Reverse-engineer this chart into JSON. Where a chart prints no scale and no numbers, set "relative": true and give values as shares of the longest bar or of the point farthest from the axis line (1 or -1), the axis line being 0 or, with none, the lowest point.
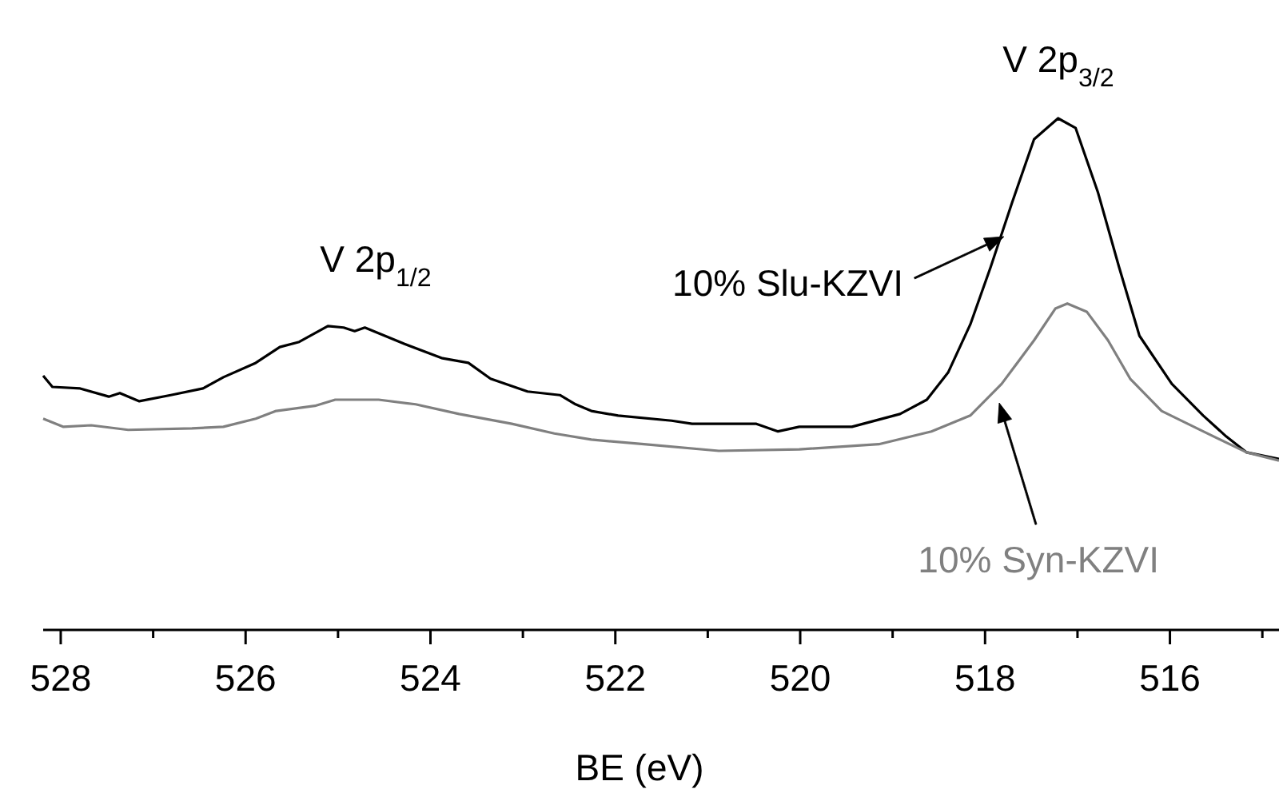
{
  "chart_data": {
    "type": "line",
    "xlabel": "BE (eV)",
    "relative": true,
    "xlim": [
      528.19,
      514.82
    ],
    "xticks": [
      528,
      {
        "value": 527,
        "label": null
      },
      526,
      {
        "value": 525,
        "label": null
      },
      524,
      {
        "value": 523,
        "label": null
      },
      522,
      {
        "value": 521,
        "label": null
      },
      520,
      {
        "value": 519,
        "label": null
      },
      518,
      {
        "value": 517,
        "label": null
      },
      516,
      {
        "value": 515,
        "label": null
      }
    ],
    "annotations": [
      "V 2p$_{1/2}$",
      "V 2p$_{3/2}$"
    ],
    "grid": false,
    "marker": "none",
    "line_style": "solid",
    "series": [
      {
        "name": "10% Slu-KZVI",
        "color": "#000000",
        "x": [
          528.19,
          528.09,
          527.79,
          527.48,
          527.36,
          527.15,
          526.81,
          526.46,
          526.24,
          525.89,
          525.63,
          525.42,
          525.11,
          524.94,
          524.82,
          524.71,
          524.28,
          523.87,
          523.59,
          523.35,
          522.95,
          522.6,
          522.43,
          522.26,
          521.97,
          521.39,
          521.17,
          520.48,
          520.24,
          520.01,
          519.44,
          518.92,
          518.63,
          518.4,
          518.16,
          517.94,
          517.71,
          517.47,
          517.21,
          517.02,
          516.78,
          516.55,
          516.33,
          515.98,
          515.64,
          515.39,
          515.17,
          514.82
        ],
        "values": [
          0.497,
          0.475,
          0.472,
          0.456,
          0.463,
          0.447,
          0.459,
          0.472,
          0.494,
          0.522,
          0.553,
          0.563,
          0.594,
          0.591,
          0.584,
          0.591,
          0.559,
          0.531,
          0.522,
          0.491,
          0.466,
          0.459,
          0.441,
          0.428,
          0.419,
          0.409,
          0.403,
          0.403,
          0.388,
          0.397,
          0.397,
          0.422,
          0.45,
          0.503,
          0.597,
          0.709,
          0.834,
          0.959,
          1,
          0.981,
          0.856,
          0.709,
          0.575,
          0.481,
          0.419,
          0.378,
          0.347,
          0.334
        ]
      },
      {
        "name": "10% Syn-KZVI",
        "color": "#808080",
        "x": [
          528.19,
          527.97,
          527.67,
          527.27,
          526.58,
          526.24,
          525.89,
          525.67,
          525.25,
          525.03,
          524.56,
          524.16,
          523.69,
          523.12,
          522.66,
          522.26,
          521.69,
          520.88,
          520.01,
          519.15,
          518.58,
          518.16,
          517.82,
          517.47,
          517.24,
          517.11,
          516.9,
          516.67,
          516.43,
          516.09,
          515.64,
          515.17,
          514.82
        ],
        "values": [
          0.413,
          0.397,
          0.4,
          0.391,
          0.394,
          0.397,
          0.413,
          0.428,
          0.438,
          0.45,
          0.45,
          0.441,
          0.422,
          0.403,
          0.384,
          0.372,
          0.363,
          0.35,
          0.353,
          0.363,
          0.388,
          0.419,
          0.481,
          0.566,
          0.628,
          0.638,
          0.622,
          0.566,
          0.491,
          0.428,
          0.388,
          0.347,
          0.331
        ]
      }
    ]
  }
}
